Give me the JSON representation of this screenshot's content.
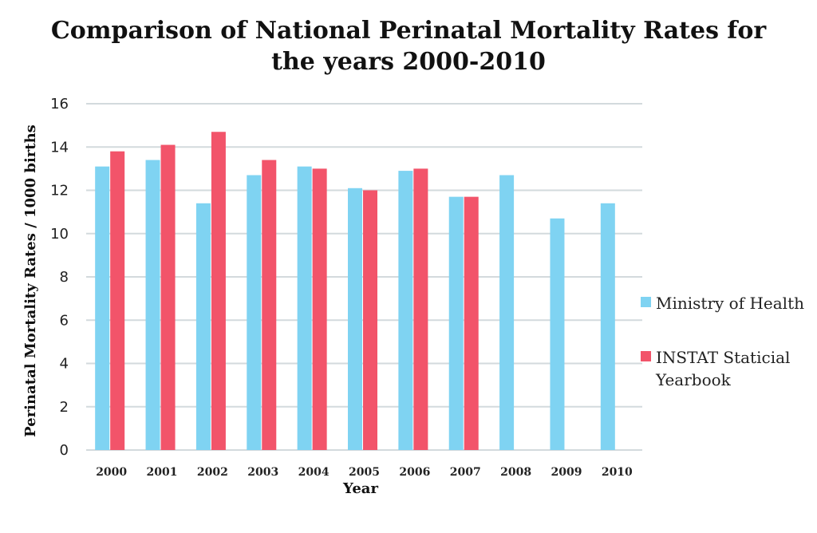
{
  "chart_data": {
    "type": "bar",
    "title_lines": [
      "Comparison of National Perinatal Mortality Rates for",
      "the years 2000-2010"
    ],
    "xlabel": "Year",
    "ylabel": "Perinatal Mortality Rates / 1000 births",
    "categories": [
      "2000",
      "2001",
      "2002",
      "2003",
      "2004",
      "2005",
      "2006",
      "2007",
      "2008",
      "2009",
      "2010"
    ],
    "ylim": [
      0,
      16
    ],
    "yticks": [
      "0",
      "2",
      "4",
      "6",
      "8",
      "10",
      "12",
      "14",
      "16"
    ],
    "grid": true,
    "legend_position": "right",
    "series": [
      {
        "name": "Ministry of Health",
        "color": "#7fd3f2",
        "values": [
          13.1,
          13.4,
          11.4,
          12.7,
          13.1,
          12.1,
          12.9,
          11.7,
          12.7,
          10.7,
          11.4
        ]
      },
      {
        "name": "INSTAT Staticial Yearbook",
        "name_lines": [
          "INSTAT Staticial",
          "Yearbook"
        ],
        "color": "#f2546a",
        "values": [
          13.8,
          14.1,
          14.7,
          13.4,
          13.0,
          12.0,
          13.0,
          11.7,
          null,
          null,
          null
        ]
      }
    ]
  }
}
